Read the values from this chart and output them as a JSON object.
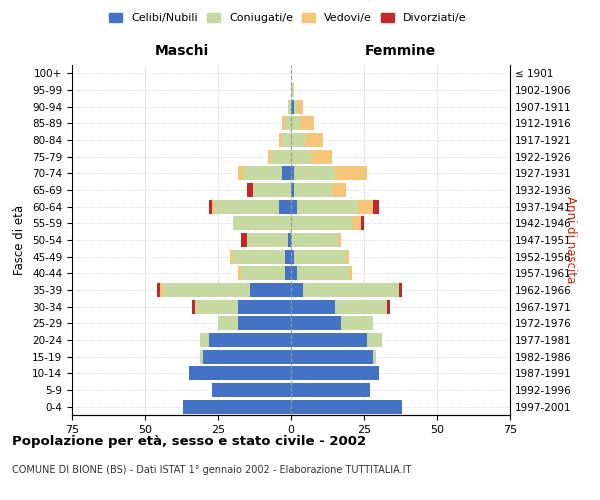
{
  "age_groups": [
    "0-4",
    "5-9",
    "10-14",
    "15-19",
    "20-24",
    "25-29",
    "30-34",
    "35-39",
    "40-44",
    "45-49",
    "50-54",
    "55-59",
    "60-64",
    "65-69",
    "70-74",
    "75-79",
    "80-84",
    "85-89",
    "90-94",
    "95-99",
    "100+"
  ],
  "birth_years": [
    "1997-2001",
    "1992-1996",
    "1987-1991",
    "1982-1986",
    "1977-1981",
    "1972-1976",
    "1967-1971",
    "1962-1966",
    "1957-1961",
    "1952-1956",
    "1947-1951",
    "1942-1946",
    "1937-1941",
    "1932-1936",
    "1927-1931",
    "1922-1926",
    "1917-1921",
    "1912-1916",
    "1907-1911",
    "1902-1906",
    "≤ 1901"
  ],
  "male_celibi": [
    37,
    27,
    35,
    30,
    28,
    18,
    18,
    14,
    2,
    2,
    1,
    0,
    4,
    0,
    3,
    0,
    0,
    0,
    0,
    0,
    0
  ],
  "male_coniugati": [
    0,
    0,
    0,
    1,
    3,
    7,
    15,
    30,
    15,
    18,
    14,
    20,
    22,
    13,
    13,
    7,
    3,
    2,
    1,
    0,
    0
  ],
  "male_vedovi": [
    0,
    0,
    0,
    0,
    0,
    0,
    0,
    1,
    1,
    1,
    0,
    0,
    1,
    0,
    2,
    1,
    1,
    1,
    0,
    0,
    0
  ],
  "male_divorziati": [
    0,
    0,
    0,
    0,
    0,
    0,
    1,
    1,
    0,
    0,
    2,
    0,
    1,
    2,
    0,
    0,
    0,
    0,
    0,
    0,
    0
  ],
  "female_celibi": [
    38,
    27,
    30,
    28,
    26,
    17,
    15,
    4,
    2,
    1,
    0,
    0,
    2,
    1,
    1,
    0,
    0,
    0,
    1,
    0,
    0
  ],
  "female_coniugati": [
    0,
    0,
    0,
    1,
    5,
    11,
    18,
    33,
    18,
    18,
    16,
    21,
    21,
    13,
    14,
    7,
    5,
    3,
    1,
    1,
    0
  ],
  "female_vedovi": [
    0,
    0,
    0,
    0,
    0,
    0,
    0,
    0,
    1,
    1,
    1,
    3,
    5,
    5,
    11,
    7,
    6,
    5,
    2,
    0,
    0
  ],
  "female_divorziati": [
    0,
    0,
    0,
    0,
    0,
    0,
    1,
    1,
    0,
    0,
    0,
    1,
    2,
    0,
    0,
    0,
    0,
    0,
    0,
    0,
    0
  ],
  "colors": {
    "celibi": "#4472C4",
    "coniugati": "#C5D9A0",
    "vedovi": "#F5C57A",
    "divorziati": "#C0282A"
  },
  "xlim": 75,
  "title": "Popolazione per età, sesso e stato civile - 2002",
  "subtitle": "COMUNE DI BIONE (BS) - Dati ISTAT 1° gennaio 2002 - Elaborazione TUTTITALIA.IT",
  "ylabel_left": "Fasce di età",
  "ylabel_right": "Anni di nascita",
  "xlabel_left": "Maschi",
  "xlabel_right": "Femmine",
  "background_color": "#FFFFFF",
  "grid_color": "#CCCCCC"
}
